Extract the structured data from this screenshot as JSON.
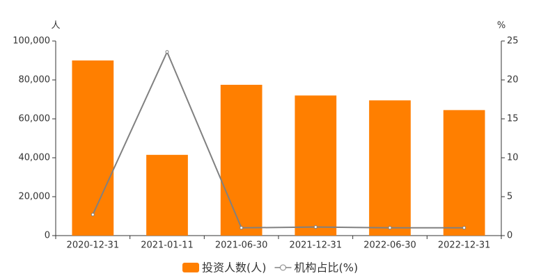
{
  "chart_data": {
    "type": "bar",
    "y_unit": "人",
    "y2_unit": "%",
    "categories": [
      "2020-12-31",
      "2021-01-11",
      "2021-06-30",
      "2021-12-31",
      "2022-06-30",
      "2022-12-31"
    ],
    "series": [
      {
        "name": "投资人数(人)",
        "color": "#ff7f00",
        "values": [
          90000,
          41500,
          77500,
          72000,
          69500,
          64500
        ]
      },
      {
        "name": "机构占比(%)",
        "color": "#808080",
        "type": "line",
        "axis": "y2",
        "values": [
          2.7,
          23.6,
          1.0,
          1.1,
          1.0,
          1.0
        ]
      }
    ],
    "ylim": [
      0,
      100000
    ],
    "yticks": [
      0,
      {
        "value": 20000,
        "label": "20,000"
      },
      {
        "value": 40000,
        "label": "40,000"
      },
      {
        "value": 60000,
        "label": "60,000"
      },
      {
        "value": 80000,
        "label": "80,000"
      },
      {
        "value": 100000,
        "label": "100,000"
      }
    ],
    "y2lim": [
      0,
      25
    ],
    "y2ticks": [
      0,
      5,
      10,
      15,
      20,
      25
    ]
  }
}
